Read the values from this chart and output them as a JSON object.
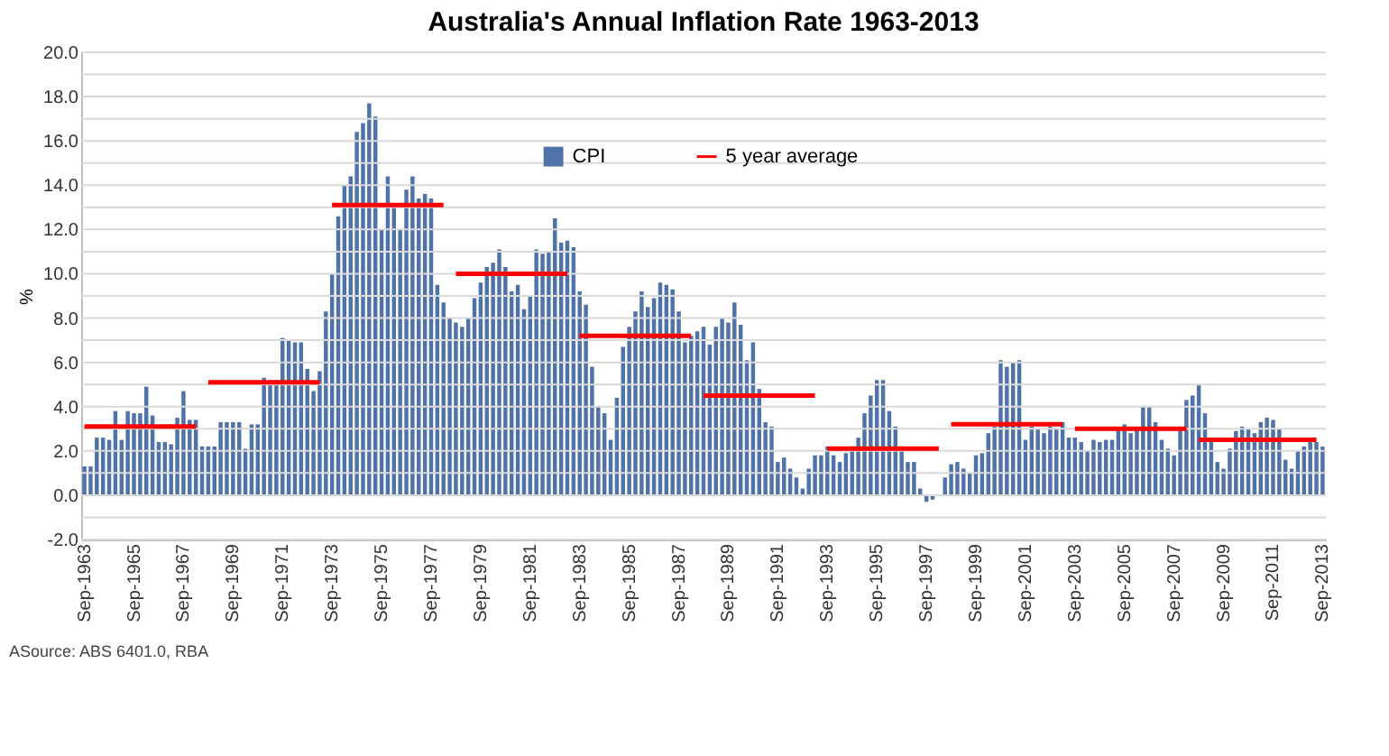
{
  "chart_data": {
    "type": "bar",
    "title": "Australia's Annual Inflation Rate 1963-2013",
    "ylabel": "%",
    "categories": [
      "Sep-1963",
      null,
      null,
      null,
      null,
      null,
      null,
      null,
      "Sep-1965",
      null,
      null,
      null,
      null,
      null,
      null,
      null,
      "Sep-1967",
      null,
      null,
      null,
      null,
      null,
      null,
      null,
      "Sep-1969",
      null,
      null,
      null,
      null,
      null,
      null,
      null,
      "Sep-1971",
      null,
      null,
      null,
      null,
      null,
      null,
      null,
      "Sep-1973",
      null,
      null,
      null,
      null,
      null,
      null,
      null,
      "Sep-1975",
      null,
      null,
      null,
      null,
      null,
      null,
      null,
      "Sep-1977",
      null,
      null,
      null,
      null,
      null,
      null,
      null,
      "Sep-1979",
      null,
      null,
      null,
      null,
      null,
      null,
      null,
      "Sep-1981",
      null,
      null,
      null,
      null,
      null,
      null,
      null,
      "Sep-1983",
      null,
      null,
      null,
      null,
      null,
      null,
      null,
      "Sep-1985",
      null,
      null,
      null,
      null,
      null,
      null,
      null,
      "Sep-1987",
      null,
      null,
      null,
      null,
      null,
      null,
      null,
      "Sep-1989",
      null,
      null,
      null,
      null,
      null,
      null,
      null,
      "Sep-1991",
      null,
      null,
      null,
      null,
      null,
      null,
      null,
      "Sep-1993",
      null,
      null,
      null,
      null,
      null,
      null,
      null,
      "Sep-1995",
      null,
      null,
      null,
      null,
      null,
      null,
      null,
      "Sep-1997",
      null,
      null,
      null,
      null,
      null,
      null,
      null,
      "Sep-1999",
      null,
      null,
      null,
      null,
      null,
      null,
      null,
      "Sep-2001",
      null,
      null,
      null,
      null,
      null,
      null,
      null,
      "Sep-2003",
      null,
      null,
      null,
      null,
      null,
      null,
      null,
      "Sep-2005",
      null,
      null,
      null,
      null,
      null,
      null,
      null,
      "Sep-2007",
      null,
      null,
      null,
      null,
      null,
      null,
      null,
      "Sep-2009",
      null,
      null,
      null,
      null,
      null,
      null,
      null,
      "Sep-2011",
      null,
      null,
      null,
      null,
      null,
      null,
      null,
      "Sep-2013"
    ],
    "series": [
      {
        "name": "CPI",
        "type": "bar",
        "color": "#4f73a8",
        "values": [
          1.3,
          1.3,
          2.6,
          2.6,
          2.5,
          3.8,
          2.5,
          3.8,
          3.7,
          3.7,
          4.9,
          3.6,
          2.4,
          2.4,
          2.3,
          3.5,
          4.7,
          3.4,
          3.4,
          2.2,
          2.2,
          2.2,
          3.3,
          3.3,
          3.3,
          3.3,
          2.1,
          3.2,
          3.2,
          5.3,
          5.2,
          5.2,
          7.1,
          7.0,
          6.9,
          6.9,
          5.7,
          4.7,
          5.6,
          8.3,
          10.0,
          12.6,
          14.0,
          14.4,
          16.4,
          16.8,
          17.7,
          17.1,
          12.0,
          14.4,
          13.2,
          12.0,
          13.8,
          14.4,
          13.4,
          13.6,
          13.4,
          9.5,
          8.7,
          8.0,
          7.8,
          7.6,
          8.0,
          8.9,
          9.6,
          10.3,
          10.5,
          11.1,
          10.3,
          9.2,
          9.5,
          8.4,
          9.0,
          11.1,
          10.9,
          11.0,
          12.5,
          11.4,
          11.5,
          11.2,
          9.2,
          8.6,
          5.8,
          4.0,
          3.7,
          2.5,
          4.4,
          6.7,
          7.6,
          8.3,
          9.2,
          8.5,
          8.9,
          9.6,
          9.5,
          9.3,
          8.3,
          6.9,
          7.2,
          7.4,
          7.6,
          6.8,
          7.6,
          8.0,
          7.8,
          8.7,
          7.7,
          6.1,
          6.9,
          4.8,
          3.3,
          3.1,
          1.5,
          1.7,
          1.2,
          0.8,
          0.3,
          1.2,
          1.8,
          1.8,
          2.2,
          1.8,
          1.5,
          1.9,
          2.2,
          2.6,
          3.7,
          4.5,
          5.2,
          5.2,
          3.8,
          3.1,
          2.2,
          1.5,
          1.5,
          0.3,
          -0.3,
          -0.2,
          null,
          0.8,
          1.4,
          1.5,
          1.2,
          1.0,
          1.8,
          1.9,
          2.8,
          3.1,
          6.1,
          5.8,
          6.0,
          6.1,
          2.5,
          3.1,
          3.0,
          2.8,
          3.1,
          3.0,
          3.3,
          2.6,
          2.6,
          2.4,
          2.0,
          2.5,
          2.4,
          2.5,
          2.5,
          3.0,
          3.2,
          2.8,
          3.0,
          4.0,
          4.0,
          3.3,
          2.5,
          2.1,
          1.8,
          3.0,
          4.3,
          4.5,
          5.0,
          3.7,
          2.4,
          1.5,
          1.2,
          2.1,
          2.9,
          3.1,
          3.0,
          2.8,
          3.3,
          3.5,
          3.4,
          3.0,
          1.6,
          1.2,
          2.0,
          2.2,
          2.4,
          2.4,
          2.2
        ]
      },
      {
        "name": "5 year average",
        "type": "line",
        "color": "#ff0000",
        "values": [
          3.1,
          3.1,
          3.1,
          3.1,
          3.1,
          3.1,
          3.1,
          3.1,
          3.1,
          3.1,
          3.1,
          3.1,
          3.1,
          3.1,
          3.1,
          3.1,
          3.1,
          3.1,
          3.1,
          null,
          5.1,
          5.1,
          5.1,
          5.1,
          5.1,
          5.1,
          5.1,
          5.1,
          5.1,
          5.1,
          5.1,
          5.1,
          5.1,
          5.1,
          5.1,
          5.1,
          5.1,
          5.1,
          5.1,
          null,
          13.1,
          13.1,
          13.1,
          13.1,
          13.1,
          13.1,
          13.1,
          13.1,
          13.1,
          13.1,
          13.1,
          13.1,
          13.1,
          13.1,
          13.1,
          13.1,
          13.1,
          13.1,
          13.1,
          null,
          10.0,
          10.0,
          10.0,
          10.0,
          10.0,
          10.0,
          10.0,
          10.0,
          10.0,
          10.0,
          10.0,
          10.0,
          10.0,
          10.0,
          10.0,
          10.0,
          10.0,
          10.0,
          10.0,
          null,
          7.2,
          7.2,
          7.2,
          7.2,
          7.2,
          7.2,
          7.2,
          7.2,
          7.2,
          7.2,
          7.2,
          7.2,
          7.2,
          7.2,
          7.2,
          7.2,
          7.2,
          7.2,
          7.2,
          null,
          4.5,
          4.5,
          4.5,
          4.5,
          4.5,
          4.5,
          4.5,
          4.5,
          4.5,
          4.5,
          4.5,
          4.5,
          4.5,
          4.5,
          4.5,
          4.5,
          4.5,
          4.5,
          4.5,
          null,
          2.1,
          2.1,
          2.1,
          2.1,
          2.1,
          2.1,
          2.1,
          2.1,
          2.1,
          2.1,
          2.1,
          2.1,
          2.1,
          2.1,
          2.1,
          2.1,
          2.1,
          2.1,
          2.1,
          null,
          3.2,
          3.2,
          3.2,
          3.2,
          3.2,
          3.2,
          3.2,
          3.2,
          3.2,
          3.2,
          3.2,
          3.2,
          3.2,
          3.2,
          3.2,
          3.2,
          3.2,
          3.2,
          3.2,
          null,
          3.0,
          3.0,
          3.0,
          3.0,
          3.0,
          3.0,
          3.0,
          3.0,
          3.0,
          3.0,
          3.0,
          3.0,
          3.0,
          3.0,
          3.0,
          3.0,
          3.0,
          3.0,
          3.0,
          null,
          2.5,
          2.5,
          2.5,
          2.5,
          2.5,
          2.5,
          2.5,
          2.5,
          2.5,
          2.5,
          2.5,
          2.5,
          2.5,
          2.5,
          2.5,
          2.5,
          2.5,
          2.5,
          2.5,
          2.5,
          null
        ]
      }
    ],
    "ylim": [
      -2,
      20
    ],
    "yticks": [
      {
        "value": -2,
        "label": "-2.0"
      },
      {
        "value": -1,
        "label": null
      },
      {
        "value": 0,
        "label": "0.0"
      },
      {
        "value": 1,
        "label": null
      },
      {
        "value": 2,
        "label": "2.0"
      },
      {
        "value": 3,
        "label": null
      },
      {
        "value": 4,
        "label": "4.0"
      },
      {
        "value": 5,
        "label": null
      },
      {
        "value": 6,
        "label": "6.0"
      },
      {
        "value": 7,
        "label": null
      },
      {
        "value": 8,
        "label": "8.0"
      },
      {
        "value": 9,
        "label": null
      },
      {
        "value": 10,
        "label": "10.0"
      },
      {
        "value": 11,
        "label": null
      },
      {
        "value": 12,
        "label": "12.0"
      },
      {
        "value": 13,
        "label": null
      },
      {
        "value": 14,
        "label": "14.0"
      },
      {
        "value": 15,
        "label": null
      },
      {
        "value": 16,
        "label": "16.0"
      },
      {
        "value": 17,
        "label": null
      },
      {
        "value": 18,
        "label": "18.0"
      },
      {
        "value": 19,
        "label": null
      },
      {
        "value": 20,
        "label": "20.0"
      }
    ],
    "grid": "y",
    "legend": "top",
    "line_style": "solid",
    "marker": "none",
    "annotations": [
      "ASource: ABS 6401.0, RBA"
    ]
  }
}
